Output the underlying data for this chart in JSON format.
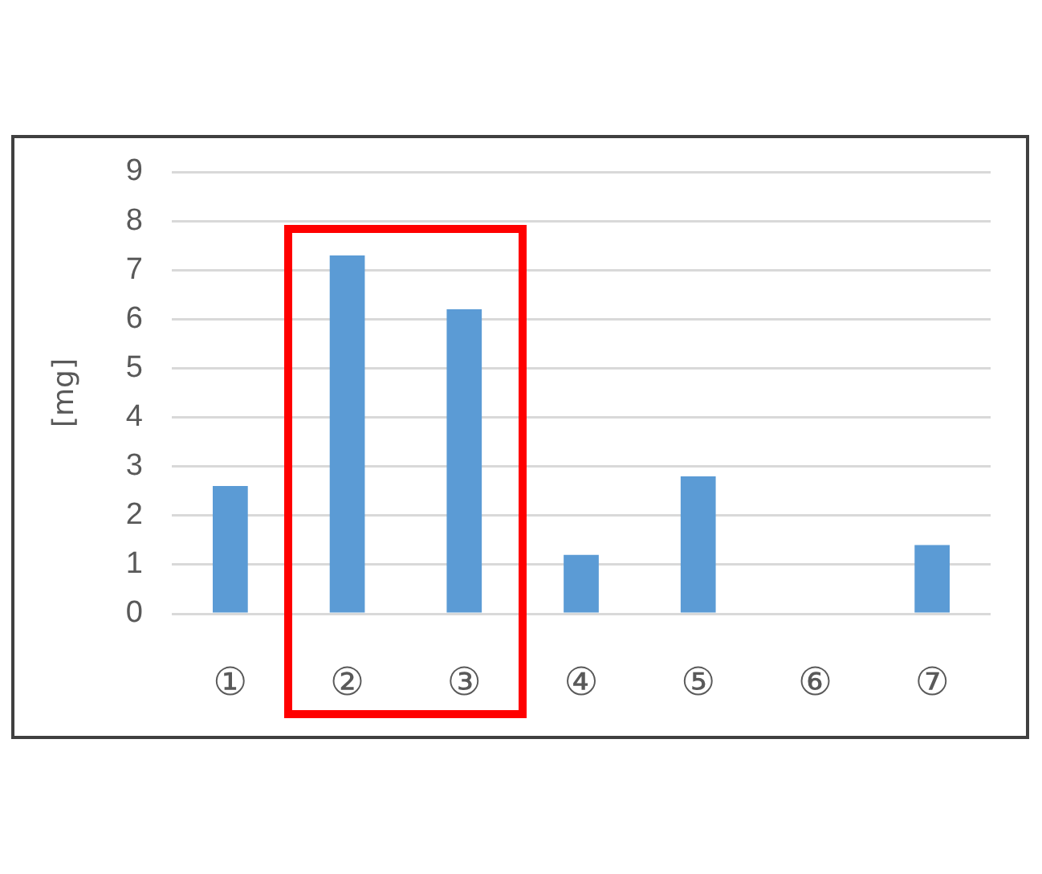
{
  "chart_data": {
    "type": "bar",
    "ylabel": "[mg]",
    "categories": [
      "①",
      "②",
      "③",
      "④",
      "⑤",
      "⑥",
      "⑦"
    ],
    "values": [
      2.6,
      7.3,
      6.2,
      1.2,
      2.8,
      0,
      1.4
    ],
    "color": "#5b9bd5",
    "ylim": [
      0,
      9
    ],
    "yticks": [
      0,
      1,
      2,
      3,
      4,
      5,
      6,
      7,
      8,
      9
    ],
    "grid": "y"
  }
}
